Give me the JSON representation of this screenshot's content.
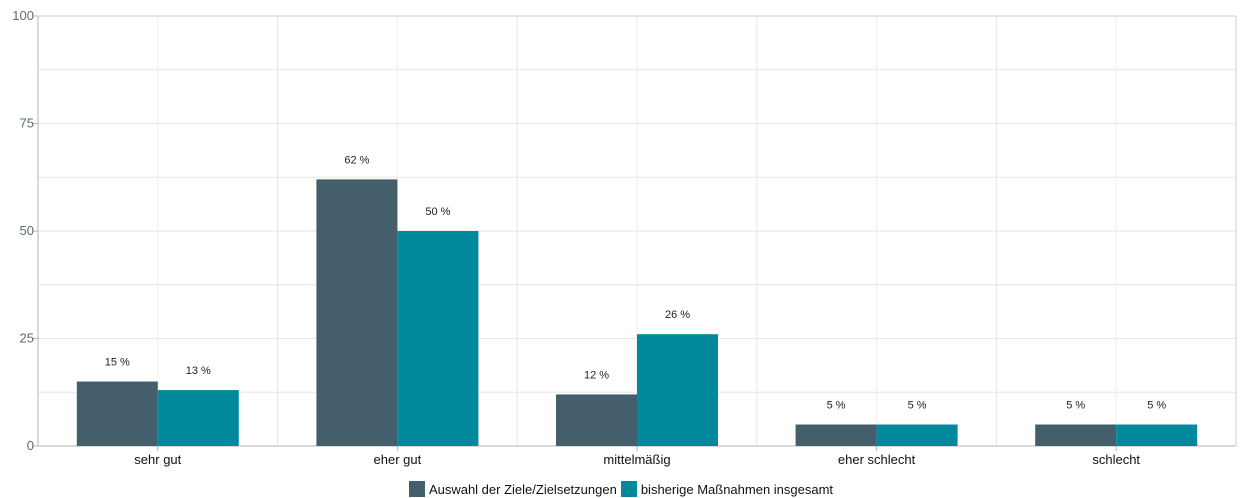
{
  "chart_data": {
    "type": "bar",
    "categories": [
      "sehr gut",
      "eher gut",
      "mittelmäßig",
      "eher schlecht",
      "schlecht"
    ],
    "series": [
      {
        "name": "Auswahl der Ziele/Zielsetzungen",
        "values": [
          15,
          62,
          12,
          5,
          5
        ],
        "labels": [
          "15 %",
          "62 %",
          "12 %",
          "5 %",
          "5 %"
        ],
        "color": "#445f6b"
      },
      {
        "name": "bisherige Maßnahmen insgesamt",
        "values": [
          13,
          50,
          26,
          5,
          5
        ],
        "labels": [
          "13 %",
          "50 %",
          "26 %",
          "5 %",
          "5 %"
        ],
        "color": "#02899c"
      }
    ],
    "ylim": [
      0,
      100
    ],
    "yticks": [
      "0",
      "25",
      "50",
      "75",
      "100"
    ],
    "grid": true,
    "legend": "bottom-center"
  }
}
